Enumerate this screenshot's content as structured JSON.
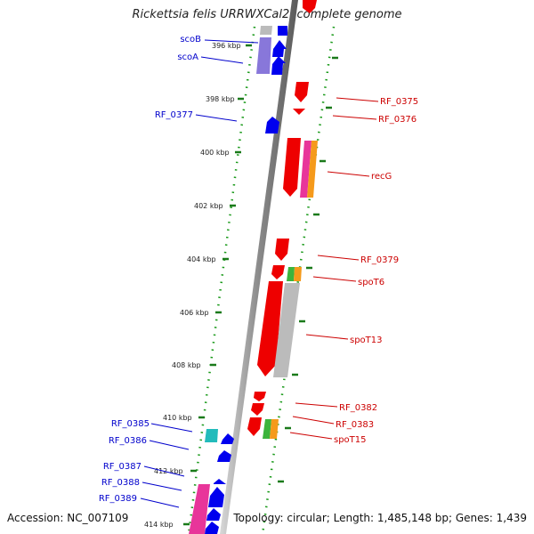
{
  "title": "Rickettsia felis URRWXCal2, complete genome",
  "footer": {
    "accession": "Accession: NC_007109",
    "summary": "Topology: circular; Length: 1,485,148 bp; Genes: 1,439"
  },
  "colors": {
    "forward_gene": "#0000ee",
    "reverse_gene": "#ee0000",
    "grey_feature": "#bbbbbb",
    "magenta_feature": "#e8359a",
    "orange_feature": "#f59a1b",
    "green_feature": "#3cb43c",
    "cyan_feature": "#22bbbb",
    "purple_feature": "#7b68d6",
    "label_left": "#0000cc",
    "label_right": "#cc0000",
    "tick": "#1a7a1a"
  },
  "scale_labels": [
    "396 kbp",
    "398 kbp",
    "400 kbp",
    "402 kbp",
    "404 kbp",
    "406 kbp",
    "408 kbp",
    "410 kbp",
    "412 kbp",
    "414 kbp"
  ],
  "left_labels": [
    "scoB",
    "scoA",
    "RF_0377",
    "RF_0385",
    "RF_0386",
    "RF_0387",
    "RF_0388",
    "RF_0389"
  ],
  "right_labels": [
    "RF_0375",
    "RF_0376",
    "recG",
    "RF_0379",
    "spoT6",
    "spoT13",
    "RF_0382",
    "RF_0383",
    "spoT15"
  ]
}
